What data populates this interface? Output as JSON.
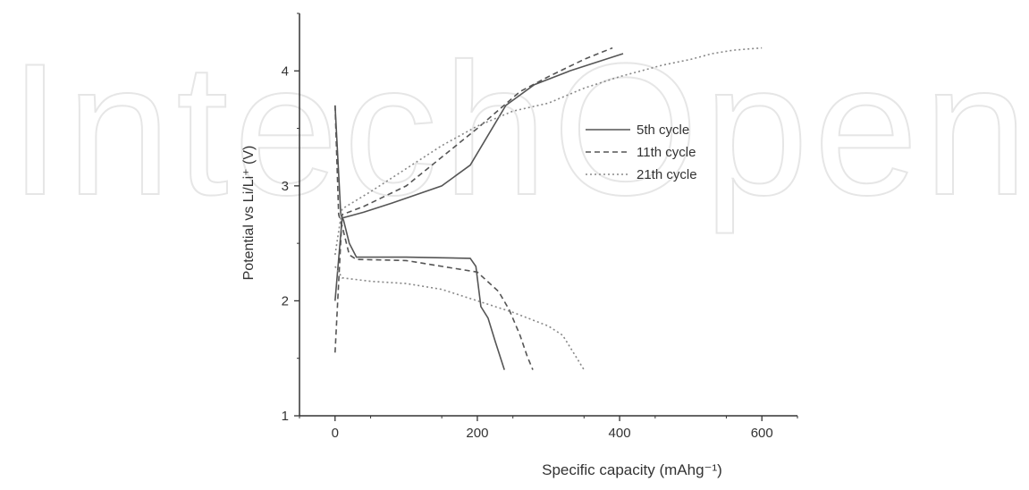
{
  "watermark": {
    "text": "IntechOpen",
    "color": "#e6e6e6"
  },
  "chart_data": {
    "type": "line",
    "xlabel": "Specific capacity (mAhg⁻¹)",
    "ylabel": "Potential vs Li/Li⁺ (V)",
    "xlim": [
      -50,
      650
    ],
    "ylim": [
      1,
      4.5
    ],
    "xticks": [
      0,
      200,
      400,
      600
    ],
    "xtick_labels": [
      "0",
      "200",
      "400",
      "600"
    ],
    "yticks": [
      1,
      2,
      3,
      4
    ],
    "ytick_labels": [
      "1",
      "2",
      "3",
      "4"
    ],
    "grid": false,
    "legend_position": "upper-right",
    "series": [
      {
        "name": "5th cycle",
        "style": "solid",
        "color": "#555555",
        "discharge": {
          "x": [
            0,
            8,
            12,
            20,
            30,
            100,
            190,
            198,
            205,
            215,
            225,
            238
          ],
          "y": [
            3.7,
            2.75,
            2.7,
            2.5,
            2.38,
            2.38,
            2.37,
            2.3,
            1.95,
            1.85,
            1.65,
            1.4
          ]
        },
        "charge": {
          "x": [
            0,
            10,
            40,
            80,
            150,
            190,
            240,
            280,
            330,
            380,
            405
          ],
          "y": [
            2.0,
            2.72,
            2.77,
            2.85,
            3.0,
            3.18,
            3.7,
            3.88,
            4.0,
            4.1,
            4.15
          ]
        }
      },
      {
        "name": "11th cycle",
        "style": "dashed",
        "color": "#555555",
        "discharge": {
          "x": [
            0,
            5,
            10,
            20,
            30,
            100,
            200,
            230,
            245,
            260,
            270,
            278
          ],
          "y": [
            3.7,
            2.75,
            2.65,
            2.4,
            2.36,
            2.35,
            2.25,
            2.08,
            1.92,
            1.7,
            1.52,
            1.4
          ]
        },
        "charge": {
          "x": [
            0,
            10,
            40,
            100,
            200,
            260,
            300,
            350,
            390
          ],
          "y": [
            1.55,
            2.75,
            2.82,
            3.0,
            3.5,
            3.82,
            3.95,
            4.1,
            4.2
          ]
        }
      },
      {
        "name": "21th cycle",
        "style": "dotted",
        "color": "#888888",
        "discharge": {
          "x": [
            0,
            10,
            50,
            100,
            150,
            200,
            250,
            300,
            320,
            335,
            350
          ],
          "y": [
            2.3,
            2.2,
            2.17,
            2.15,
            2.1,
            2.0,
            1.9,
            1.78,
            1.7,
            1.55,
            1.4
          ]
        },
        "charge": {
          "x": [
            0,
            10,
            50,
            100,
            150,
            200,
            250,
            300,
            350,
            400,
            460,
            500,
            530,
            560,
            600
          ],
          "y": [
            2.4,
            2.8,
            2.95,
            3.15,
            3.35,
            3.52,
            3.65,
            3.72,
            3.85,
            3.95,
            4.05,
            4.1,
            4.15,
            4.18,
            4.2
          ]
        }
      }
    ]
  }
}
